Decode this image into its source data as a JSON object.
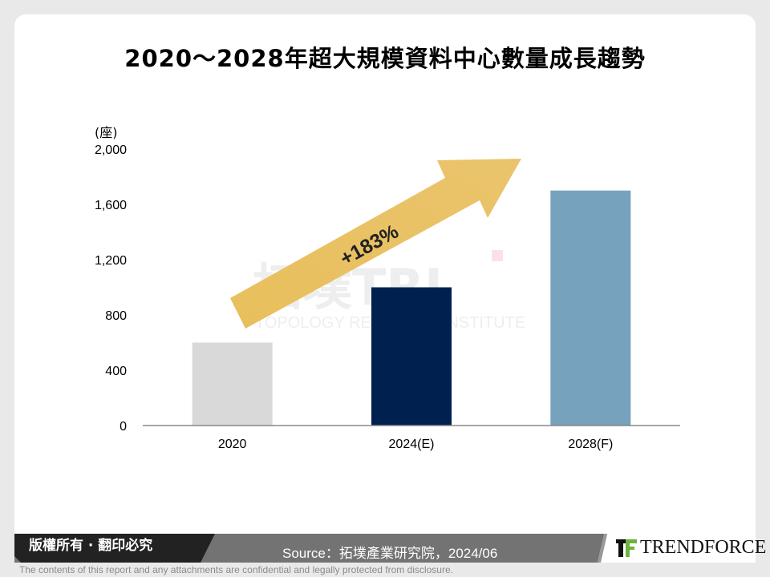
{
  "title": "2020～2028年超大規模資料中心數量成長趨勢",
  "chart_data": {
    "type": "bar",
    "title": "2020～2028年超大規模資料中心數量成長趨勢",
    "categories": [
      "2020",
      "2024(E)",
      "2028(F)"
    ],
    "values": [
      600,
      1000,
      1700
    ],
    "colors": [
      "#d9d9d9",
      "#002050",
      "#76a2bd"
    ],
    "ylabel": "(座)",
    "ylim": [
      0,
      2000
    ],
    "yticks": [
      0,
      400,
      800,
      1200,
      1600,
      2000
    ],
    "ytick_labels": [
      "0",
      "400",
      "800",
      "1,200",
      "1,600",
      "2,000"
    ],
    "grid": false,
    "annotation": "+183%",
    "annotation_color": "#e8bf5c"
  },
  "watermark": {
    "logo_text": "拓墣TRI",
    "subtitle": "TOPOLOGY RESEARCH INSTITUTE"
  },
  "footer": {
    "copyright": "版權所有 · 翻印必究",
    "source": "Source：拓墣產業研究院，2024/06",
    "brand": "TRENDFORCE",
    "disclaimer": "The contents of this report and any attachments are confidential and legally protected from disclosure."
  }
}
